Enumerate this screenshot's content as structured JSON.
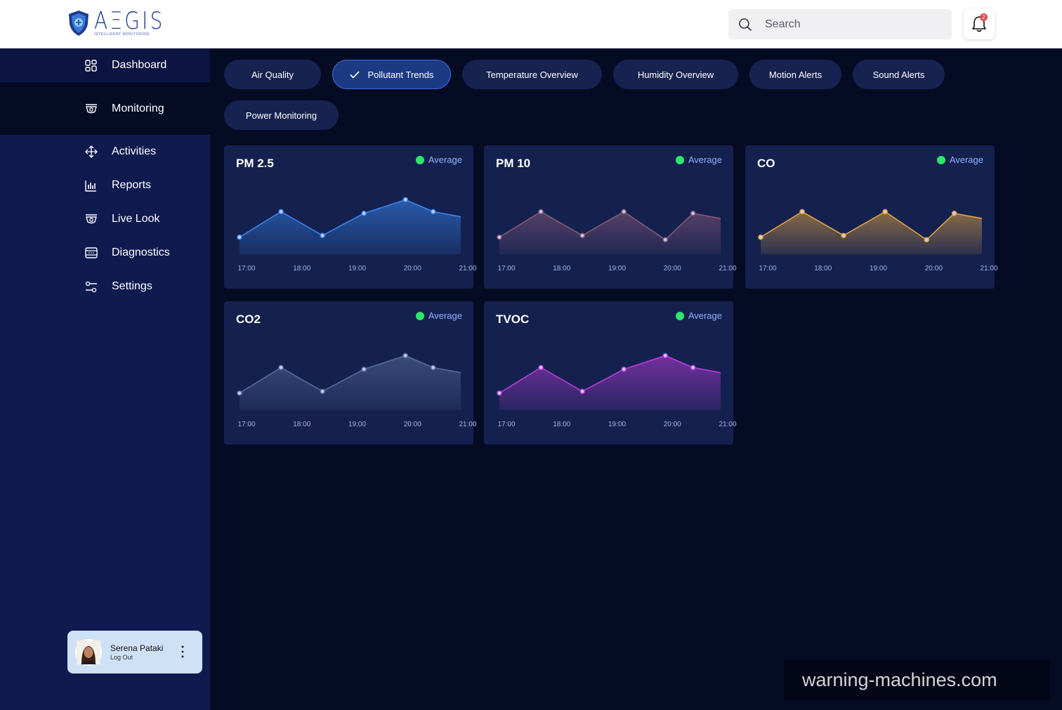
{
  "header": {
    "logo_text": "AΞGIS",
    "logo_subtitle": "INTELLIGENT MONITORING",
    "search_placeholder": "Search",
    "notification_count": "2"
  },
  "sidebar": {
    "items": [
      {
        "label": "Dashboard",
        "icon": "dashboard-icon"
      },
      {
        "label": "Monitoring",
        "icon": "camera-icon"
      },
      {
        "label": "Activities",
        "icon": "move-icon"
      },
      {
        "label": "Reports",
        "icon": "bar-chart-icon"
      },
      {
        "label": "Live Look",
        "icon": "camera-icon"
      },
      {
        "label": "Diagnostics",
        "icon": "diagnostics-icon"
      },
      {
        "label": "Settings",
        "icon": "sliders-icon"
      }
    ],
    "active": "Monitoring"
  },
  "profile": {
    "name": "Serena Pataki",
    "action": "Log Out"
  },
  "tabs": [
    {
      "label": "Air Quality"
    },
    {
      "label": "Pollutant Trends",
      "selected": true
    },
    {
      "label": "Temperature Overview"
    },
    {
      "label": "Humidity Overview"
    },
    {
      "label": "Motion Alerts"
    },
    {
      "label": "Sound Alerts"
    },
    {
      "label": "Power Monitoring"
    }
  ],
  "colors": {
    "status_green": "#2ee66b",
    "pm25": "#3b8af5",
    "pm10": "#8a5a78",
    "co": "#e8a640",
    "co2": "#5a6f9e",
    "tvoc": "#c23ee0"
  },
  "chart_data": [
    {
      "type": "area",
      "title": "PM 2.5",
      "status": "Average",
      "tick_labels": [
        "17:00",
        "18:00",
        "19:00",
        "20:00",
        "21:00"
      ],
      "x": [
        "17:00",
        "17:45",
        "18:30",
        "19:15",
        "20:00",
        "20:30",
        "21:00"
      ],
      "values": [
        20,
        50,
        22,
        48,
        64,
        50,
        44
      ]
    },
    {
      "type": "area",
      "title": "PM 10",
      "status": "Average",
      "tick_labels": [
        "17:00",
        "18:00",
        "19:00",
        "20:00",
        "21:00"
      ],
      "x": [
        "17:00",
        "17:45",
        "18:30",
        "19:15",
        "20:00",
        "20:30",
        "21:00"
      ],
      "values": [
        20,
        50,
        22,
        50,
        17,
        48,
        42
      ]
    },
    {
      "type": "area",
      "title": "CO",
      "status": "Average",
      "tick_labels": [
        "17:00",
        "18:00",
        "19:00",
        "20:00",
        "21:00"
      ],
      "x": [
        "17:00",
        "17:45",
        "18:30",
        "19:15",
        "20:00",
        "20:30",
        "21:00"
      ],
      "values": [
        20,
        50,
        22,
        50,
        17,
        48,
        42
      ]
    },
    {
      "type": "area",
      "title": "CO2",
      "status": "Average",
      "tick_labels": [
        "17:00",
        "18:00",
        "19:00",
        "20:00",
        "21:00"
      ],
      "x": [
        "17:00",
        "17:45",
        "18:30",
        "19:15",
        "20:00",
        "20:30",
        "21:00"
      ],
      "values": [
        20,
        50,
        22,
        48,
        64,
        50,
        44
      ]
    },
    {
      "type": "area",
      "title": "TVOC",
      "status": "Average",
      "tick_labels": [
        "17:00",
        "18:00",
        "19:00",
        "20:00",
        "21:00"
      ],
      "x": [
        "17:00",
        "17:45",
        "18:30",
        "19:15",
        "20:00",
        "20:30",
        "21:00"
      ],
      "values": [
        20,
        50,
        22,
        48,
        64,
        50,
        44
      ]
    }
  ],
  "watermark": "warning-machines.com"
}
